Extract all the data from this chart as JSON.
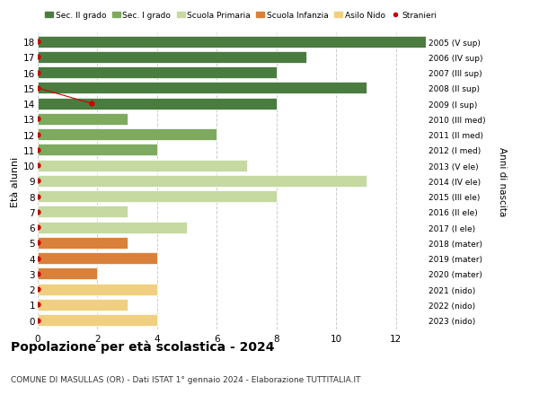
{
  "ages": [
    18,
    17,
    16,
    15,
    14,
    13,
    12,
    11,
    10,
    9,
    8,
    7,
    6,
    5,
    4,
    3,
    2,
    1,
    0
  ],
  "years": [
    "2005 (V sup)",
    "2006 (IV sup)",
    "2007 (III sup)",
    "2008 (II sup)",
    "2009 (I sup)",
    "2010 (III med)",
    "2011 (II med)",
    "2012 (I med)",
    "2013 (V ele)",
    "2014 (IV ele)",
    "2015 (III ele)",
    "2016 (II ele)",
    "2017 (I ele)",
    "2018 (mater)",
    "2019 (mater)",
    "2020 (mater)",
    "2021 (nido)",
    "2022 (nido)",
    "2023 (nido)"
  ],
  "values": [
    13,
    9,
    8,
    11,
    8,
    3,
    6,
    4,
    7,
    11,
    8,
    3,
    5,
    3,
    4,
    2,
    4,
    3,
    4
  ],
  "stranieri_x": [
    0.0,
    0.0,
    0.0,
    0.0,
    1.8,
    0.0,
    0.0,
    0.0,
    0.0,
    0.0,
    0.0,
    0.0,
    0.0,
    0.0,
    0.0,
    0.0,
    0.0,
    0.0,
    0.0
  ],
  "bar_colors": [
    "#4a7c3f",
    "#4a7c3f",
    "#4a7c3f",
    "#4a7c3f",
    "#4a7c3f",
    "#7daa5e",
    "#7daa5e",
    "#7daa5e",
    "#c5d9a0",
    "#c5d9a0",
    "#c5d9a0",
    "#c5d9a0",
    "#c5d9a0",
    "#d9813a",
    "#d9813a",
    "#d9813a",
    "#f0d080",
    "#f0d080",
    "#f0d080"
  ],
  "color_sec2": "#4a7c3f",
  "color_sec1": "#7daa5e",
  "color_prim": "#c5d9a0",
  "color_inf": "#d9813a",
  "color_nido": "#f0d080",
  "color_stranieri": "#cc0000",
  "title": "Popolazione per età scolastica - 2024",
  "subtitle": "COMUNE DI MASULLAS (OR) - Dati ISTAT 1° gennaio 2024 - Elaborazione TUTTITALIA.IT",
  "ylabel": "Età alunni",
  "ylabel2": "Anni di nascita",
  "xlim": [
    0,
    13
  ],
  "xticks": [
    0,
    2,
    4,
    6,
    8,
    10,
    12
  ],
  "background_color": "#ffffff",
  "grid_color": "#cccccc"
}
